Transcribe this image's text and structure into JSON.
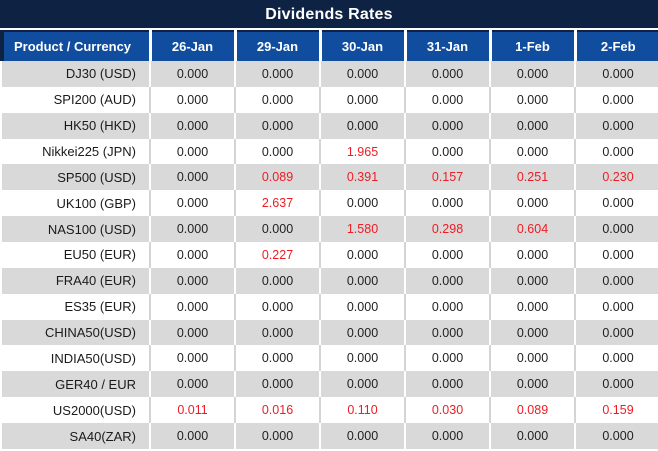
{
  "title": "Dividends Rates",
  "colors": {
    "title_bg": "#0e2244",
    "header_bg": "#104d9f",
    "header_text": "#ffffff",
    "stripe_gray": "#d9d9d9",
    "stripe_white": "#ffffff",
    "value_red": "#ee1c25",
    "text_dark": "#1f1f1f"
  },
  "chart_data": {
    "type": "table",
    "title": "Dividends Rates",
    "columns": [
      "Product / Currency",
      "26-Jan",
      "29-Jan",
      "30-Jan",
      "31-Jan",
      "1-Feb",
      "2-Feb"
    ],
    "rows": [
      {
        "product": "DJ30 (USD)",
        "values": [
          "0.000",
          "0.000",
          "0.000",
          "0.000",
          "0.000",
          "0.000"
        ],
        "highlight": [
          false,
          false,
          false,
          false,
          false,
          false
        ]
      },
      {
        "product": "SPI200 (AUD)",
        "values": [
          "0.000",
          "0.000",
          "0.000",
          "0.000",
          "0.000",
          "0.000"
        ],
        "highlight": [
          false,
          false,
          false,
          false,
          false,
          false
        ]
      },
      {
        "product": "HK50 (HKD)",
        "values": [
          "0.000",
          "0.000",
          "0.000",
          "0.000",
          "0.000",
          "0.000"
        ],
        "highlight": [
          false,
          false,
          false,
          false,
          false,
          false
        ]
      },
      {
        "product": "Nikkei225 (JPN)",
        "values": [
          "0.000",
          "0.000",
          "1.965",
          "0.000",
          "0.000",
          "0.000"
        ],
        "highlight": [
          false,
          false,
          true,
          false,
          false,
          false
        ]
      },
      {
        "product": "SP500 (USD)",
        "values": [
          "0.000",
          "0.089",
          "0.391",
          "0.157",
          "0.251",
          "0.230"
        ],
        "highlight": [
          false,
          true,
          true,
          true,
          true,
          true
        ]
      },
      {
        "product": "UK100 (GBP)",
        "values": [
          "0.000",
          "2.637",
          "0.000",
          "0.000",
          "0.000",
          "0.000"
        ],
        "highlight": [
          false,
          true,
          false,
          false,
          false,
          false
        ]
      },
      {
        "product": "NAS100 (USD)",
        "values": [
          "0.000",
          "0.000",
          "1.580",
          "0.298",
          "0.604",
          "0.000"
        ],
        "highlight": [
          false,
          false,
          true,
          true,
          true,
          false
        ]
      },
      {
        "product": "EU50 (EUR)",
        "values": [
          "0.000",
          "0.227",
          "0.000",
          "0.000",
          "0.000",
          "0.000"
        ],
        "highlight": [
          false,
          true,
          false,
          false,
          false,
          false
        ]
      },
      {
        "product": "FRA40 (EUR)",
        "values": [
          "0.000",
          "0.000",
          "0.000",
          "0.000",
          "0.000",
          "0.000"
        ],
        "highlight": [
          false,
          false,
          false,
          false,
          false,
          false
        ]
      },
      {
        "product": "ES35 (EUR)",
        "values": [
          "0.000",
          "0.000",
          "0.000",
          "0.000",
          "0.000",
          "0.000"
        ],
        "highlight": [
          false,
          false,
          false,
          false,
          false,
          false
        ]
      },
      {
        "product": "CHINA50(USD)",
        "values": [
          "0.000",
          "0.000",
          "0.000",
          "0.000",
          "0.000",
          "0.000"
        ],
        "highlight": [
          false,
          false,
          false,
          false,
          false,
          false
        ]
      },
      {
        "product": "INDIA50(USD)",
        "values": [
          "0.000",
          "0.000",
          "0.000",
          "0.000",
          "0.000",
          "0.000"
        ],
        "highlight": [
          false,
          false,
          false,
          false,
          false,
          false
        ]
      },
      {
        "product": "GER40 / EUR",
        "values": [
          "0.000",
          "0.000",
          "0.000",
          "0.000",
          "0.000",
          "0.000"
        ],
        "highlight": [
          false,
          false,
          false,
          false,
          false,
          false
        ]
      },
      {
        "product": "US2000(USD)",
        "values": [
          "0.011",
          "0.016",
          "0.110",
          "0.030",
          "0.089",
          "0.159"
        ],
        "highlight": [
          true,
          true,
          true,
          true,
          true,
          true
        ]
      },
      {
        "product": "SA40(ZAR)",
        "values": [
          "0.000",
          "0.000",
          "0.000",
          "0.000",
          "0.000",
          "0.000"
        ],
        "highlight": [
          false,
          false,
          false,
          false,
          false,
          false
        ]
      }
    ]
  }
}
